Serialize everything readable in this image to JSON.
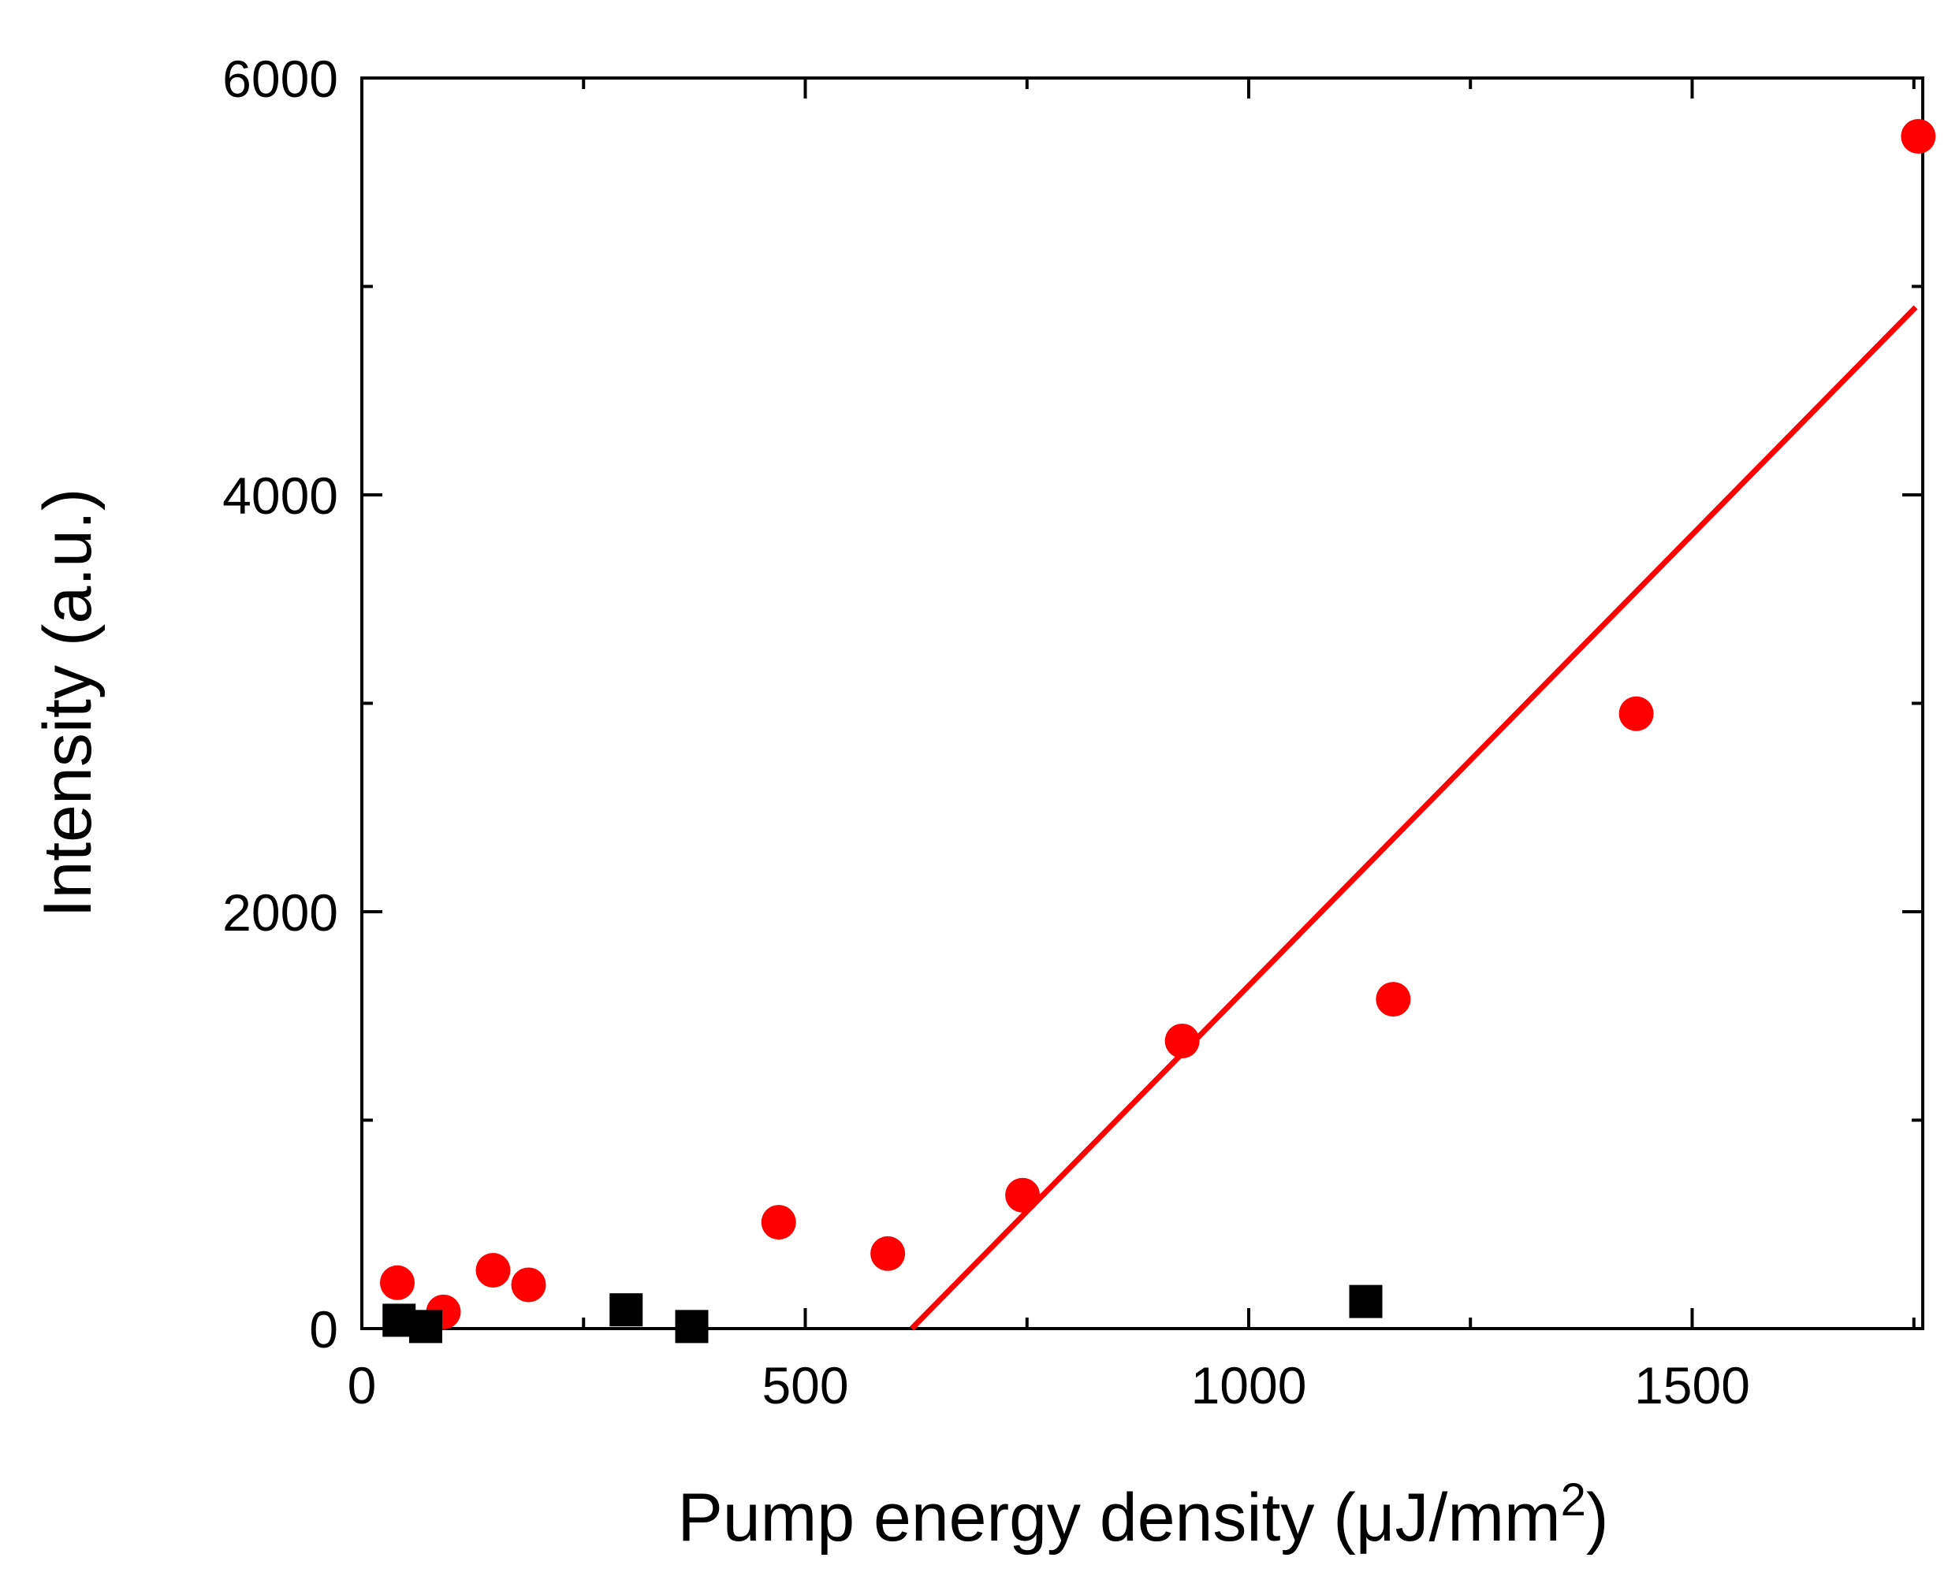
{
  "chart_data": {
    "type": "scatter",
    "title": "",
    "xlabel": "Pump energy density (μJ/mm",
    "xlabel_superscript": "2",
    "xlabel_suffix": ")",
    "ylabel": "Intensity (a.u.)",
    "xlim": [
      0,
      1760
    ],
    "ylim": [
      0,
      6000
    ],
    "x_ticks": [
      0,
      500,
      1000,
      1500
    ],
    "y_ticks": [
      0,
      2000,
      4000,
      6000
    ],
    "grid": false,
    "series": [
      {
        "name": "red circles",
        "marker": "circle",
        "color": "#ff0000",
        "x": [
          40,
          92,
          148,
          188,
          470,
          593,
          745,
          925,
          1163,
          1437,
          1755
        ],
        "y": [
          220,
          80,
          280,
          210,
          510,
          360,
          640,
          1380,
          1580,
          2950,
          5720
        ]
      },
      {
        "name": "black squares",
        "marker": "square",
        "color": "#000000",
        "x": [
          42,
          72,
          298,
          372,
          1132
        ],
        "y": [
          40,
          10,
          90,
          10,
          130
        ]
      },
      {
        "name": "linear fit",
        "type": "line",
        "color": "#ff0000",
        "x": [
          620,
          1752
        ],
        "y": [
          0,
          4900
        ]
      }
    ]
  }
}
